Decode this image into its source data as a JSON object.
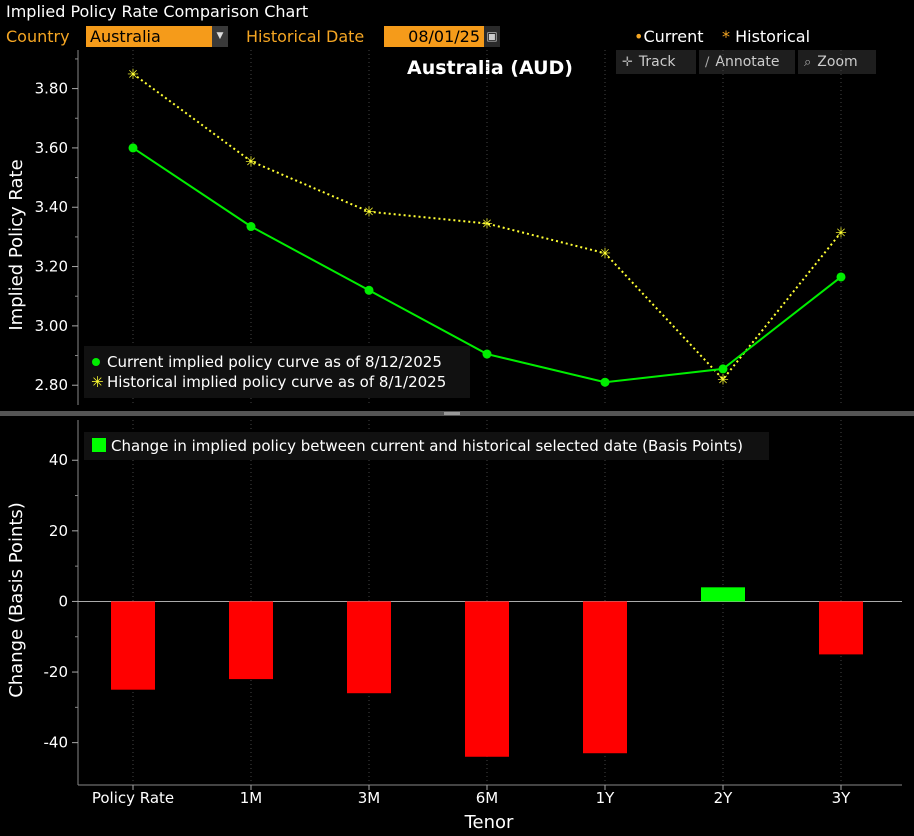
{
  "window": {
    "title": "Implied Policy Rate Comparison Chart"
  },
  "controls": {
    "country_label": "Country",
    "country_value": "Australia",
    "date_label": "Historical Date",
    "date_value": "08/01/25"
  },
  "legend_top": {
    "current": "Current",
    "historical": "Historical"
  },
  "toolbar": {
    "track": "Track",
    "annotate": "Annotate",
    "zoom": "Zoom"
  },
  "colors": {
    "accent": "#f59b1a",
    "current": "#00ee00",
    "historical": "#ffff33",
    "negative": "#ff0000",
    "positive": "#00ff00"
  },
  "chart_data": [
    {
      "type": "line",
      "title": "Australia (AUD)",
      "ylabel": "Implied Policy Rate",
      "categories": [
        "Policy Rate",
        "1M",
        "3M",
        "6M",
        "1Y",
        "2Y",
        "3Y"
      ],
      "ylim": [
        2.74,
        3.92
      ],
      "yticks": [
        "3.80",
        "3.60",
        "3.40",
        "3.20",
        "3.00",
        "2.80"
      ],
      "series": [
        {
          "name": "Current implied policy curve as of 8/12/2025",
          "values": [
            3.6,
            3.335,
            3.12,
            2.905,
            2.81,
            2.855,
            3.165
          ]
        },
        {
          "name": "Historical implied policy curve as of 8/1/2025",
          "values": [
            3.85,
            3.555,
            3.385,
            3.345,
            3.245,
            2.82,
            3.315
          ]
        }
      ]
    },
    {
      "type": "bar",
      "ylabel": "Change (Basis Points)",
      "xlabel": "Tenor",
      "categories": [
        "Policy Rate",
        "1M",
        "3M",
        "6M",
        "1Y",
        "2Y",
        "3Y"
      ],
      "ylim": [
        -52,
        48
      ],
      "yticks": [
        "40",
        "20",
        "0",
        "-20",
        "-40"
      ],
      "series": [
        {
          "name": "Change in implied policy between current and historical selected date (Basis Points)",
          "values": [
            -25,
            -22,
            -26,
            -44,
            -43,
            4,
            -15
          ]
        }
      ]
    }
  ]
}
